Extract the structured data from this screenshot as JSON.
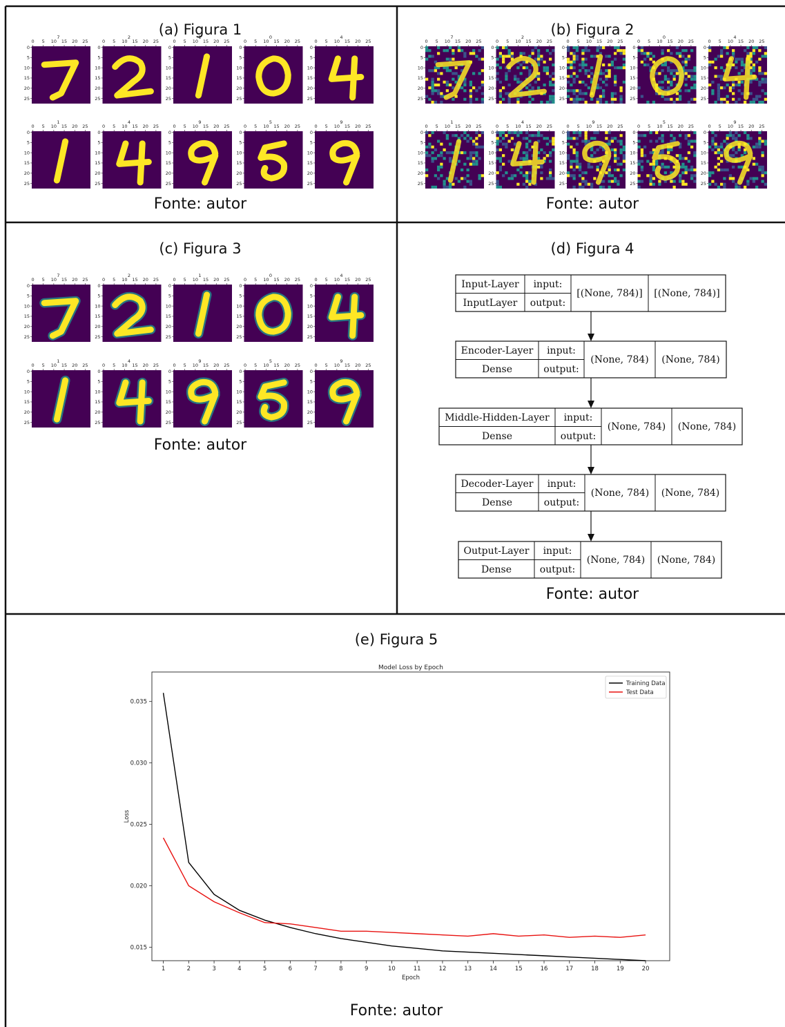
{
  "panels": {
    "a": {
      "caption": "(a) Figura 1",
      "source": "Fonte: autor",
      "labels": [
        "7",
        "2",
        "1",
        "0",
        "4",
        "1",
        "4",
        "9",
        "5",
        "9"
      ]
    },
    "b": {
      "caption": "(b)  Figura 2",
      "source": "Fonte: autor",
      "labels": [
        "7",
        "2",
        "1",
        "0",
        "4",
        "1",
        "4",
        "9",
        "5",
        "9"
      ]
    },
    "c": {
      "caption": "(c) Figura 3",
      "source": "Fonte: autor",
      "labels": [
        "7",
        "2",
        "1",
        "0",
        "4",
        "1",
        "4",
        "9",
        "5",
        "9"
      ]
    },
    "d": {
      "caption": "(d) Figura 4",
      "source": "Fonte: autor",
      "model": {
        "port_in": "input:",
        "port_out": "output:",
        "layers": [
          {
            "name": "Input-Layer",
            "type": "InputLayer",
            "in_shape": "[(None, 784)]",
            "out_shape": "[(None, 784)]"
          },
          {
            "name": "Encoder-Layer",
            "type": "Dense",
            "in_shape": "(None, 784)",
            "out_shape": "(None, 784)"
          },
          {
            "name": "Middle-Hidden-Layer",
            "type": "Dense",
            "in_shape": "(None, 784)",
            "out_shape": "(None, 784)"
          },
          {
            "name": "Decoder-Layer",
            "type": "Dense",
            "in_shape": "(None, 784)",
            "out_shape": "(None, 784)"
          },
          {
            "name": "Output-Layer",
            "type": "Dense",
            "in_shape": "(None, 784)",
            "out_shape": "(None, 784)"
          }
        ]
      }
    },
    "e": {
      "caption": "(e) Figura 5",
      "source": "Fonte: autor"
    }
  },
  "thumb_ticks": [
    "0",
    "5",
    "10",
    "15",
    "20",
    "25"
  ],
  "image_colormap": [
    "#440154",
    "#3b528b",
    "#21918c",
    "#5ec962",
    "#fde725"
  ],
  "chart_data": {
    "type": "line",
    "title": "Model Loss by Epoch",
    "xlabel": "Epoch",
    "ylabel": "Loss",
    "x": [
      1,
      2,
      3,
      4,
      5,
      6,
      7,
      8,
      9,
      10,
      11,
      12,
      13,
      14,
      15,
      16,
      17,
      18,
      19,
      20
    ],
    "xlim": [
      0.55,
      20.95
    ],
    "ylim": [
      0.0139,
      0.0374
    ],
    "yticks": [
      "0.015",
      "0.020",
      "0.025",
      "0.030",
      "0.035"
    ],
    "legend_position": "top-right",
    "grid": false,
    "series": [
      {
        "name": "Training Data",
        "color": "#000000",
        "values": [
          0.0357,
          0.0219,
          0.0193,
          0.018,
          0.0172,
          0.0166,
          0.0161,
          0.0157,
          0.0154,
          0.0151,
          0.0149,
          0.0147,
          0.0146,
          0.0145,
          0.0144,
          0.0143,
          0.0142,
          0.0141,
          0.014,
          0.0139
        ]
      },
      {
        "name": "Test Data",
        "color": "#e8110f",
        "values": [
          0.0239,
          0.02,
          0.0187,
          0.0178,
          0.017,
          0.0169,
          0.0166,
          0.0163,
          0.0163,
          0.0162,
          0.0161,
          0.016,
          0.0159,
          0.0161,
          0.0159,
          0.016,
          0.0158,
          0.0159,
          0.0158,
          0.016
        ]
      }
    ]
  }
}
